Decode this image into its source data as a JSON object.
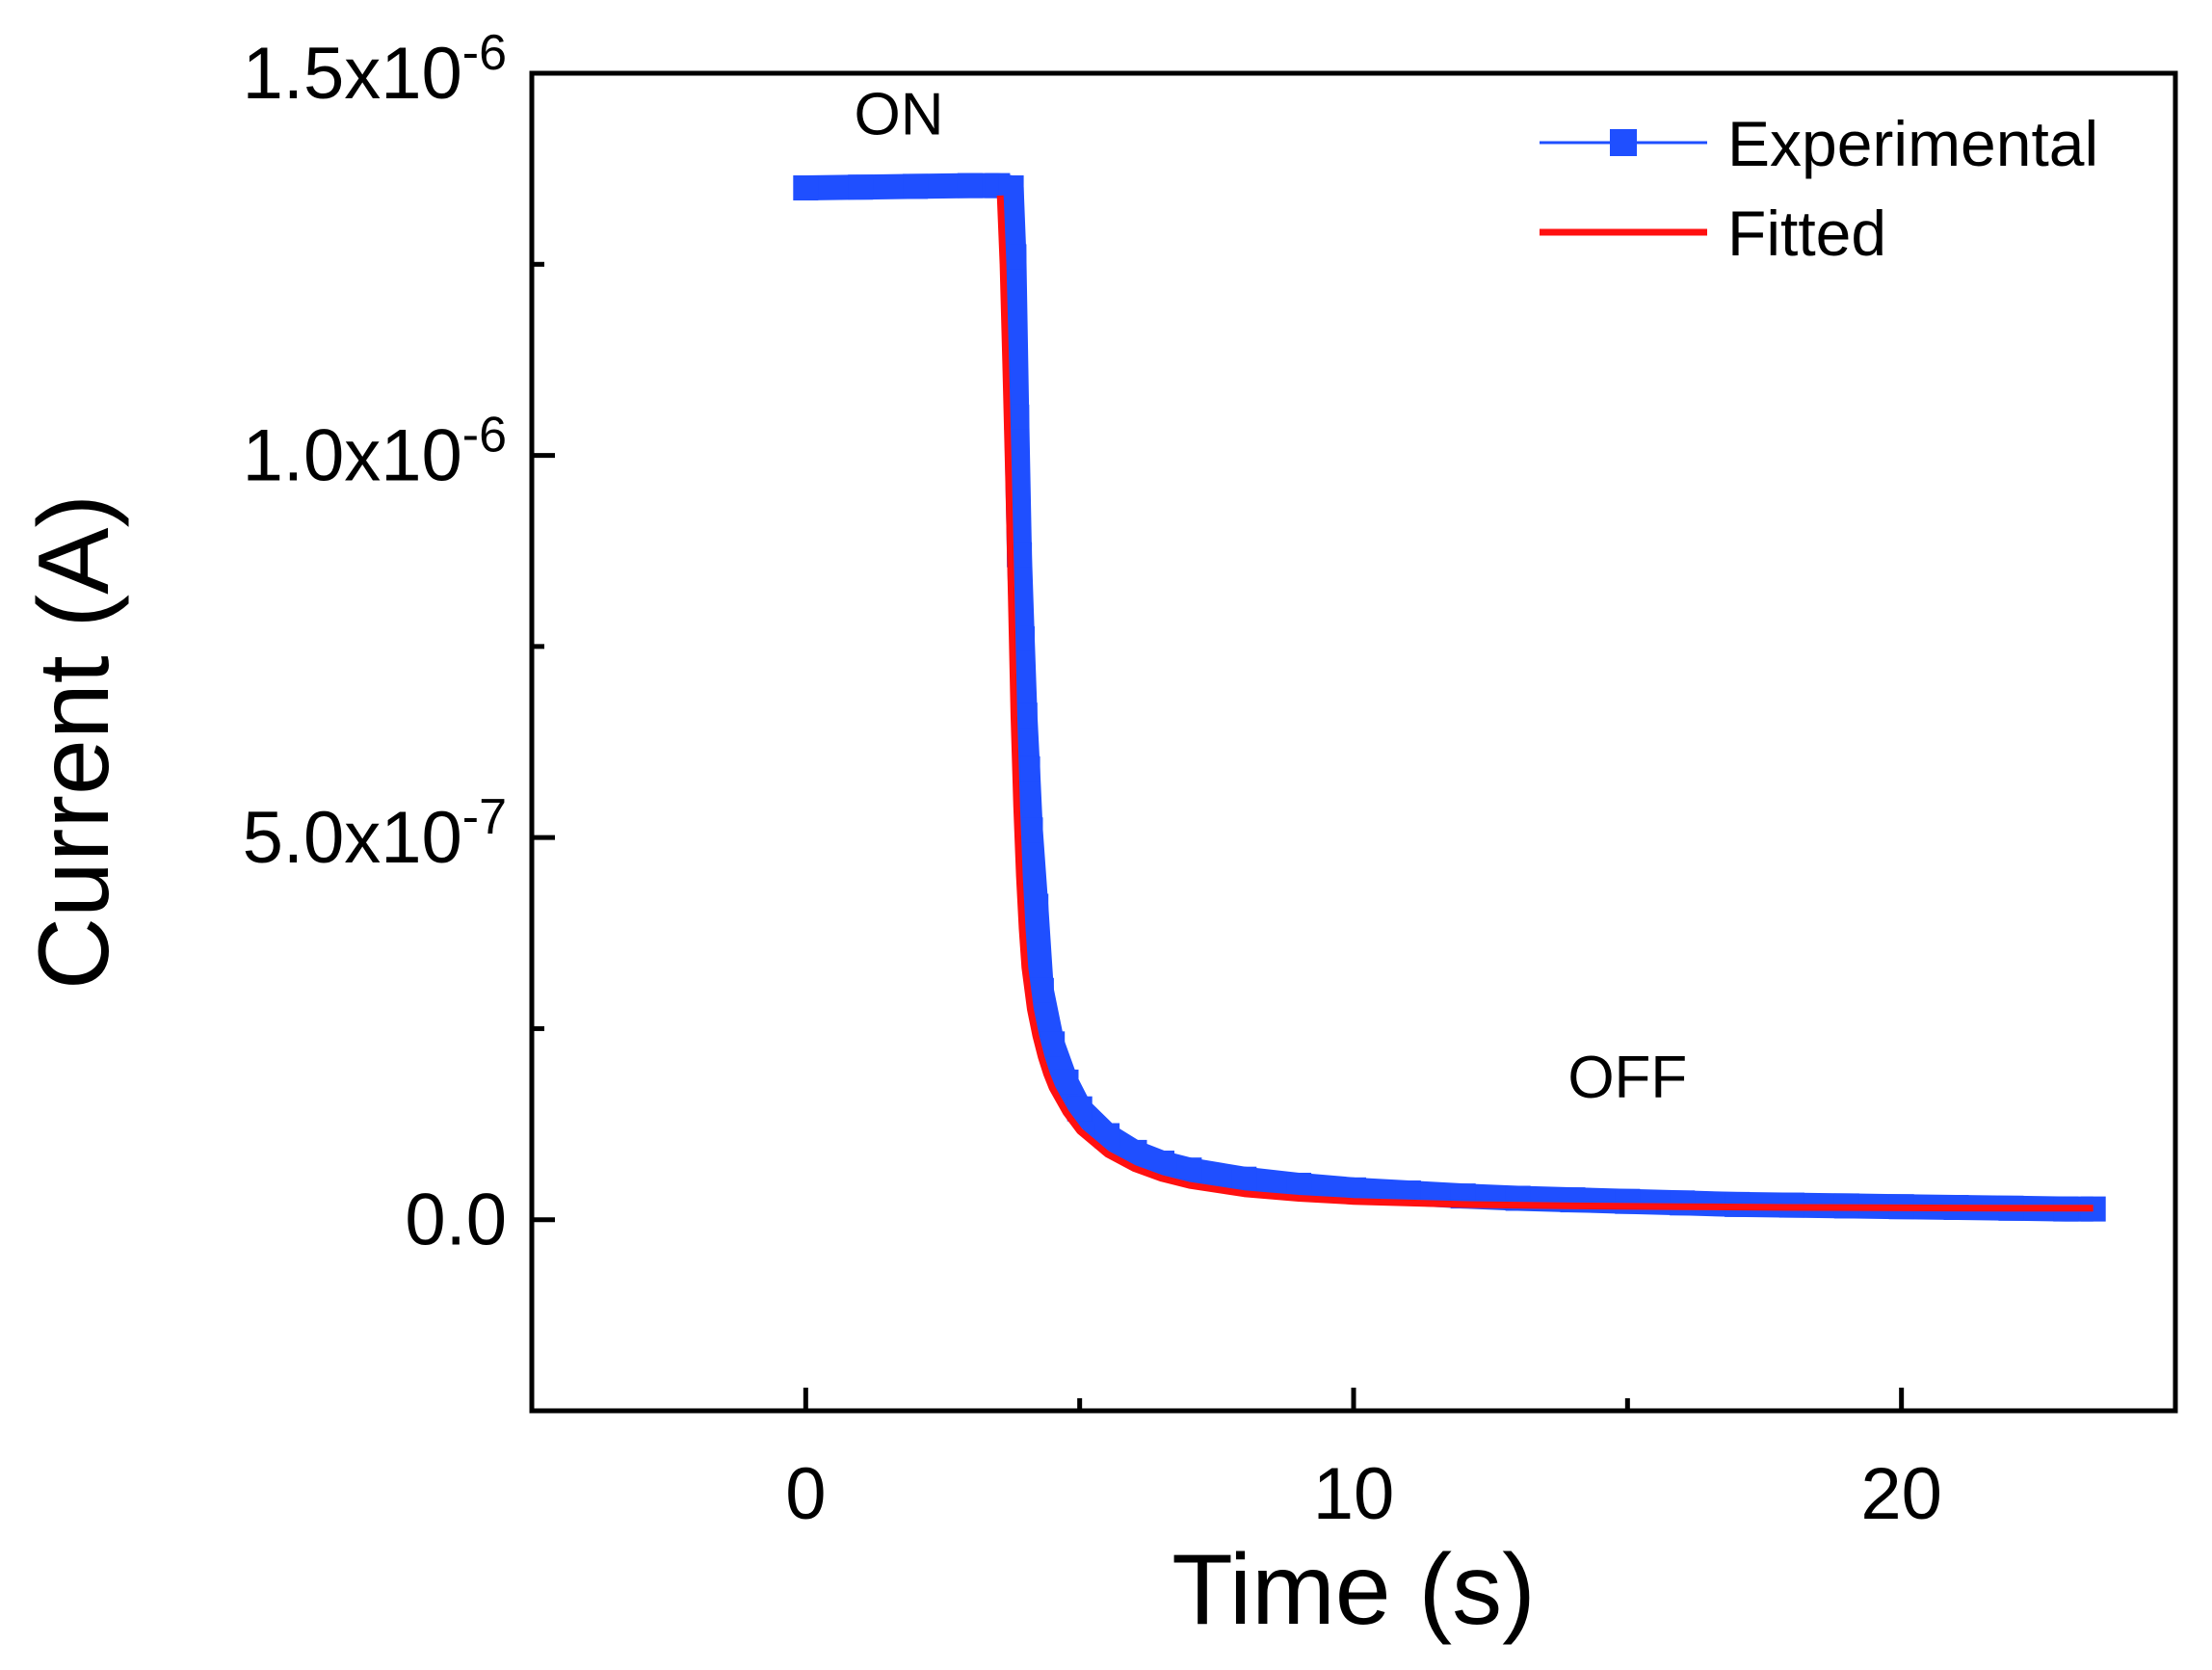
{
  "chart_data": {
    "type": "line",
    "xlabel": "Time (s)",
    "ylabel": "Current (A)",
    "xlim": [
      -5,
      25
    ],
    "ylim": [
      -2.5e-07,
      1.5e-06
    ],
    "x_ticks": [
      {
        "value": 0,
        "label": "0"
      },
      {
        "value": 10,
        "label": "10"
      },
      {
        "value": 20,
        "label": "20"
      }
    ],
    "x_minor_ticks": [
      5,
      15
    ],
    "y_ticks": [
      {
        "value": 1.5e-06,
        "mantissa": "1.5x10",
        "exponent": "-6"
      },
      {
        "value": 1e-06,
        "mantissa": "1.0x10",
        "exponent": "-6"
      },
      {
        "value": 5e-07,
        "mantissa": "5.0x10",
        "exponent": "-7"
      },
      {
        "value": 0,
        "mantissa": "0.0",
        "exponent": ""
      }
    ],
    "y_minor_ticks": [
      1.25e-06,
      7.5e-07,
      2.5e-07
    ],
    "annotations": [
      {
        "text": "ON",
        "x": 1.7,
        "y": 1.42e-06
      },
      {
        "text": "OFF",
        "x": 15,
        "y": 1.6e-07
      }
    ],
    "legend": {
      "position": "top-right",
      "entries": [
        {
          "label": "Experimental",
          "series": 0
        },
        {
          "label": "Fitted",
          "series": 1
        }
      ]
    },
    "series": [
      {
        "name": "Experimental",
        "color": "#1f4fff",
        "style": "thick-band",
        "x": [
          0.0,
          1.0,
          2.0,
          3.0,
          3.5,
          3.75,
          3.8,
          3.85,
          3.9,
          3.95,
          4.0,
          4.05,
          4.1,
          4.2,
          4.3,
          4.5,
          4.75,
          5.0,
          5.5,
          6.0,
          6.5,
          7.0,
          8.0,
          9.0,
          10.0,
          11.0,
          12.0,
          13.0,
          14.0,
          15.0,
          16.0,
          17.0,
          18.0,
          19.0,
          20.0,
          21.0,
          22.0,
          23.0,
          23.5
        ],
        "y": [
          1.35e-06,
          1.351e-06,
          1.352e-06,
          1.353e-06,
          1.353e-06,
          1.35e-06,
          1.26e-06,
          1.05e-06,
          8.7e-07,
          7.6e-07,
          6.6e-07,
          5.9e-07,
          5.1e-07,
          4.1e-07,
          3e-07,
          2.3e-07,
          1.8e-07,
          1.45e-07,
          1.1e-07,
          8.8e-08,
          7.4e-08,
          6.5e-08,
          5.3e-08,
          4.5e-08,
          3.9e-08,
          3.5e-08,
          3.1e-08,
          2.8e-08,
          2.6e-08,
          2.4e-08,
          2.2e-08,
          2e-08,
          1.9e-08,
          1.8e-08,
          1.7e-08,
          1.6e-08,
          1.5e-08,
          1.4e-08,
          1.4e-08
        ]
      },
      {
        "name": "Fitted",
        "color": "#ff1010",
        "style": "line",
        "x": [
          3.55,
          3.6,
          3.65,
          3.7,
          3.75,
          3.8,
          3.85,
          3.9,
          3.95,
          4.0,
          4.1,
          4.2,
          4.3,
          4.4,
          4.5,
          4.75,
          5.0,
          5.5,
          6.0,
          6.5,
          7.0,
          8.0,
          9.0,
          10.0,
          12.0,
          14.0,
          16.0,
          18.0,
          20.0,
          22.0,
          23.5
        ],
        "y": [
          1.34e-06,
          1.25e-06,
          1.12e-06,
          9.8e-07,
          8.2e-07,
          6.6e-07,
          5.4e-07,
          4.5e-07,
          3.8e-07,
          3.3e-07,
          2.75e-07,
          2.4e-07,
          2.12e-07,
          1.9e-07,
          1.72e-07,
          1.4e-07,
          1.16e-07,
          8.6e-08,
          6.7e-08,
          5.4e-08,
          4.5e-08,
          3.4e-08,
          2.8e-08,
          2.4e-08,
          2e-08,
          1.8e-08,
          1.7e-08,
          1.6e-08,
          1.55e-08,
          1.5e-08,
          1.5e-08
        ]
      }
    ]
  }
}
